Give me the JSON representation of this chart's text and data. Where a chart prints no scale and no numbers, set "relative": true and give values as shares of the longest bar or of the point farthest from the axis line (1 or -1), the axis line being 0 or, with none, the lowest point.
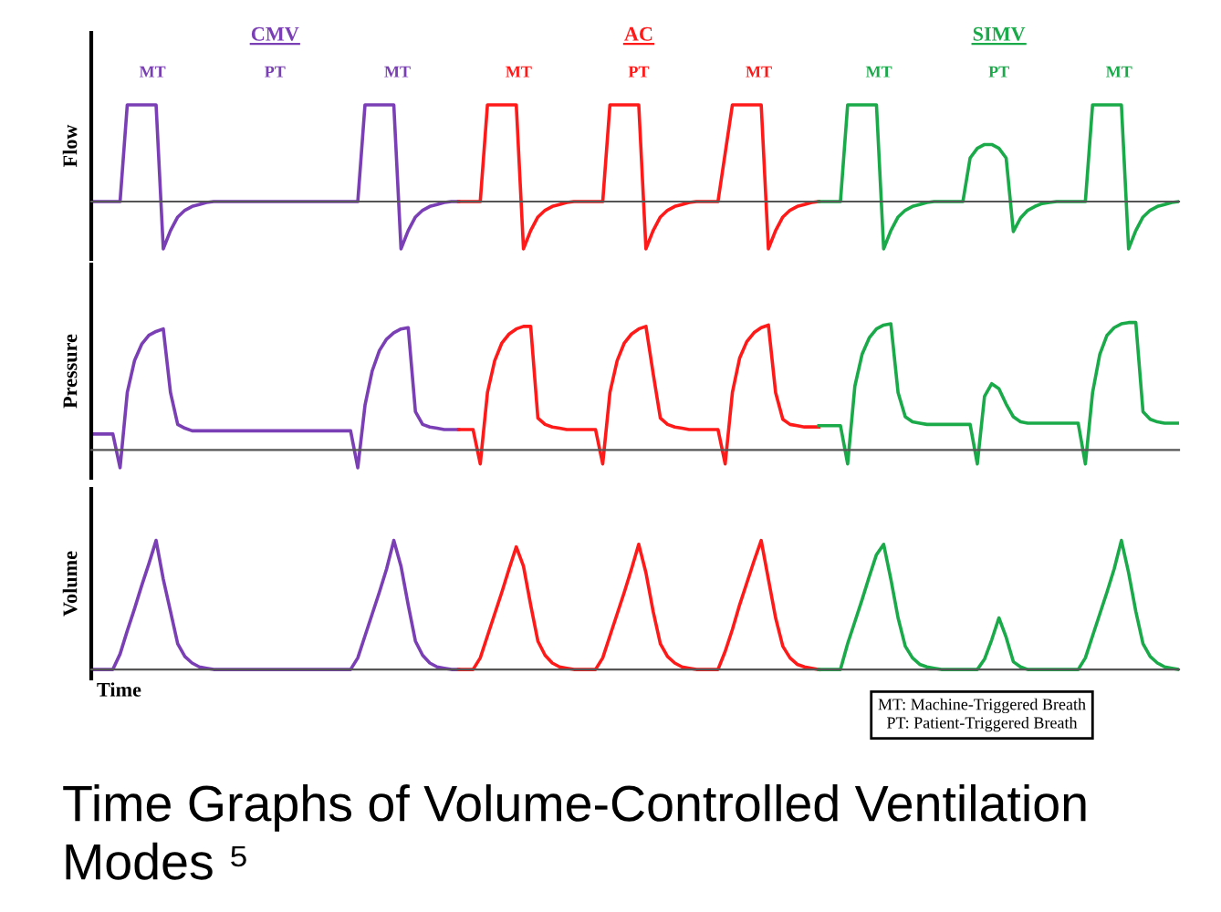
{
  "chart_data": [
    {
      "type": "line",
      "title": "Time Graphs of Volume-Controlled Ventilation Modes ⁵",
      "ylabel": "Flow",
      "relative": true,
      "tick_labels": false,
      "annotations": [
        "CMV",
        "AC",
        "SIMV",
        "MT",
        "PT",
        "MT",
        "MT",
        "PT",
        "MT",
        "MT",
        "PT",
        "MT"
      ],
      "categories": [
        null,
        null,
        null,
        null,
        null,
        null,
        null,
        null,
        null,
        null,
        null,
        null,
        null,
        null,
        null,
        null,
        null,
        null,
        null,
        null,
        null,
        null,
        null,
        null,
        null,
        null,
        null,
        null,
        null,
        null,
        null,
        null,
        null,
        null,
        null,
        null,
        null,
        null,
        null,
        null,
        null,
        null,
        null,
        null,
        null,
        null,
        null,
        null,
        null,
        null,
        null,
        null,
        null,
        null,
        null,
        null,
        null,
        null,
        null,
        null,
        null,
        null,
        null,
        null,
        null,
        null,
        null,
        null,
        null,
        null,
        null,
        null,
        null,
        null,
        null,
        null,
        null,
        null,
        null,
        null,
        null,
        null,
        null,
        null,
        null,
        null,
        null,
        null,
        null,
        null,
        null,
        null,
        null,
        null,
        null,
        null,
        null,
        null,
        null,
        null,
        null,
        null,
        null,
        null,
        null,
        null,
        null,
        null,
        null,
        null,
        null,
        null,
        null,
        null,
        null,
        null,
        null,
        null,
        null,
        null,
        null,
        null,
        null,
        null,
        null,
        null,
        null,
        null,
        null,
        null,
        null,
        null,
        null,
        null,
        null,
        null,
        null,
        null,
        null,
        null,
        null,
        null,
        null,
        null,
        null,
        null,
        null,
        null,
        null,
        null,
        null,
        null
      ],
      "series": [
        {
          "color": "#7b3fb5",
          "values": [
            0,
            0,
            0,
            0,
            0,
            1,
            1,
            1,
            1,
            1,
            -0.49,
            -0.3,
            -0.16,
            -0.09,
            -0.05,
            -0.03,
            -0.01,
            0,
            0,
            0,
            0,
            0,
            0,
            0,
            0,
            0,
            0,
            0,
            0,
            0,
            0,
            0,
            0,
            0,
            0,
            0,
            0,
            0,
            1,
            1,
            1,
            1,
            1,
            -0.49,
            -0.3,
            -0.16,
            -0.09,
            -0.05,
            -0.03,
            -0.01,
            0,
            0,
            null,
            null,
            null,
            null,
            null,
            null,
            null,
            null,
            null,
            null,
            null,
            null,
            null,
            null,
            null,
            null,
            null,
            null,
            null,
            null,
            null,
            null,
            null,
            null,
            null,
            null,
            null,
            null,
            null,
            null,
            null,
            null,
            null,
            null,
            null,
            null,
            null,
            null,
            null,
            null,
            null,
            null,
            null,
            null,
            null,
            null,
            null,
            null,
            null,
            null,
            null,
            null,
            null,
            null,
            null,
            null,
            null,
            null,
            null,
            null,
            null,
            null,
            null,
            null,
            null,
            null,
            null,
            null,
            null,
            null,
            null,
            null,
            null,
            null,
            null,
            null,
            null,
            null,
            null,
            null,
            null,
            null,
            null,
            null,
            null,
            null,
            null,
            null,
            null,
            null,
            null,
            null,
            null,
            null,
            null,
            null,
            null,
            null,
            null,
            null
          ]
        },
        {
          "color": "#ff1a1a",
          "values": [
            null,
            null,
            null,
            null,
            null,
            null,
            null,
            null,
            null,
            null,
            null,
            null,
            null,
            null,
            null,
            null,
            null,
            null,
            null,
            null,
            null,
            null,
            null,
            null,
            null,
            null,
            null,
            null,
            null,
            null,
            null,
            null,
            null,
            null,
            null,
            null,
            null,
            null,
            null,
            null,
            null,
            null,
            null,
            null,
            null,
            null,
            null,
            null,
            null,
            null,
            null,
            0,
            0,
            0,
            0,
            1,
            1,
            1,
            1,
            1,
            -0.49,
            -0.3,
            -0.16,
            -0.09,
            -0.05,
            -0.03,
            -0.01,
            0,
            0,
            0,
            0,
            0,
            1,
            1,
            1,
            1,
            1,
            -0.49,
            -0.3,
            -0.16,
            -0.09,
            -0.05,
            -0.03,
            -0.01,
            0,
            0,
            0,
            0,
            0.5,
            1,
            1,
            1,
            1,
            1,
            -0.49,
            -0.3,
            -0.16,
            -0.09,
            -0.05,
            -0.03,
            -0.01,
            0,
            null,
            null,
            null,
            null,
            null,
            null,
            null,
            null,
            null,
            null,
            null,
            null,
            null,
            null,
            null,
            null,
            null,
            null,
            null,
            null,
            null,
            null,
            null,
            null,
            null,
            null,
            null,
            null,
            null,
            null,
            null,
            null,
            null,
            null,
            null,
            null,
            null,
            null,
            null,
            null,
            null,
            null,
            null,
            null,
            null,
            null,
            null,
            null,
            null,
            null
          ]
        },
        {
          "color": "#1aaa4a",
          "values": [
            null,
            null,
            null,
            null,
            null,
            null,
            null,
            null,
            null,
            null,
            null,
            null,
            null,
            null,
            null,
            null,
            null,
            null,
            null,
            null,
            null,
            null,
            null,
            null,
            null,
            null,
            null,
            null,
            null,
            null,
            null,
            null,
            null,
            null,
            null,
            null,
            null,
            null,
            null,
            null,
            null,
            null,
            null,
            null,
            null,
            null,
            null,
            null,
            null,
            null,
            null,
            null,
            null,
            null,
            null,
            null,
            null,
            null,
            null,
            null,
            null,
            null,
            null,
            null,
            null,
            null,
            null,
            null,
            null,
            null,
            null,
            null,
            null,
            null,
            null,
            null,
            null,
            null,
            null,
            null,
            null,
            null,
            null,
            null,
            null,
            null,
            null,
            null,
            null,
            null,
            null,
            null,
            null,
            null,
            null,
            null,
            null,
            null,
            null,
            null,
            null,
            0,
            0,
            0,
            0,
            1,
            1,
            1,
            1,
            1,
            -0.49,
            -0.3,
            -0.16,
            -0.09,
            -0.05,
            -0.03,
            -0.01,
            0,
            0,
            0,
            0,
            0,
            0.45,
            0.55,
            0.59,
            0.59,
            0.55,
            0.45,
            -0.31,
            -0.17,
            -0.09,
            -0.05,
            -0.02,
            -0.01,
            0,
            0,
            0,
            0,
            0,
            1,
            1,
            1,
            1,
            1,
            -0.49,
            -0.3,
            -0.16,
            -0.09,
            -0.05,
            -0.03,
            -0.01,
            0
          ]
        }
      ]
    },
    {
      "type": "line",
      "ylabel": "Pressure",
      "relative": true,
      "tick_labels": false,
      "categories": [
        null,
        null,
        null,
        null,
        null,
        null,
        null,
        null,
        null,
        null,
        null,
        null,
        null,
        null,
        null,
        null,
        null,
        null,
        null,
        null,
        null,
        null,
        null,
        null,
        null,
        null,
        null,
        null,
        null,
        null,
        null,
        null,
        null,
        null,
        null,
        null,
        null,
        null,
        null,
        null,
        null,
        null,
        null,
        null,
        null,
        null,
        null,
        null,
        null,
        null,
        null,
        null,
        null,
        null,
        null,
        null,
        null,
        null,
        null,
        null,
        null,
        null,
        null,
        null,
        null,
        null,
        null,
        null,
        null,
        null,
        null,
        null,
        null,
        null,
        null,
        null,
        null,
        null,
        null,
        null,
        null,
        null,
        null,
        null,
        null,
        null,
        null,
        null,
        null,
        null,
        null,
        null,
        null,
        null,
        null,
        null,
        null,
        null,
        null,
        null,
        null,
        null,
        null,
        null,
        null,
        null,
        null,
        null,
        null,
        null,
        null,
        null,
        null,
        null,
        null,
        null,
        null,
        null,
        null,
        null,
        null,
        null,
        null,
        null,
        null,
        null,
        null,
        null,
        null,
        null,
        null,
        null,
        null,
        null,
        null,
        null,
        null,
        null,
        null,
        null,
        null,
        null,
        null,
        null,
        null,
        null,
        null,
        null,
        null,
        null,
        null,
        null
      ],
      "series": [
        {
          "color": "#7b3fb5",
          "values": [
            0.125,
            0.125,
            0.125,
            0.125,
            -0.14,
            0.45,
            0.7,
            0.83,
            0.9,
            0.93,
            0.95,
            0.45,
            0.2,
            0.17,
            0.15,
            0.15,
            0.15,
            0.15,
            0.15,
            0.15,
            0.15,
            0.15,
            0.15,
            0.15,
            0.15,
            0.15,
            0.15,
            0.15,
            0.15,
            0.15,
            0.15,
            0.15,
            0.15,
            0.15,
            0.15,
            0.15,
            0.15,
            -0.14,
            0.35,
            0.62,
            0.78,
            0.87,
            0.92,
            0.95,
            0.96,
            0.3,
            0.2,
            0.18,
            0.17,
            0.16,
            0.16,
            0.16,
            null,
            null,
            null,
            null,
            null,
            null,
            null,
            null,
            null,
            null,
            null,
            null,
            null,
            null,
            null,
            null,
            null,
            null,
            null,
            null,
            null,
            null,
            null,
            null,
            null,
            null,
            null,
            null,
            null,
            null,
            null,
            null,
            null,
            null,
            null,
            null,
            null,
            null,
            null,
            null,
            null,
            null,
            null,
            null,
            null,
            null,
            null,
            null,
            null,
            null,
            null,
            null,
            null,
            null,
            null,
            null,
            null,
            null,
            null,
            null,
            null,
            null,
            null,
            null,
            null,
            null,
            null,
            null,
            null,
            null,
            null,
            null,
            null,
            null,
            null,
            null,
            null,
            null,
            null,
            null,
            null,
            null,
            null,
            null,
            null,
            null,
            null,
            null,
            null,
            null,
            null,
            null,
            null,
            null,
            null,
            null,
            null,
            null,
            null,
            null
          ]
        },
        {
          "color": "#ff1a1a",
          "values": [
            null,
            null,
            null,
            null,
            null,
            null,
            null,
            null,
            null,
            null,
            null,
            null,
            null,
            null,
            null,
            null,
            null,
            null,
            null,
            null,
            null,
            null,
            null,
            null,
            null,
            null,
            null,
            null,
            null,
            null,
            null,
            null,
            null,
            null,
            null,
            null,
            null,
            null,
            null,
            null,
            null,
            null,
            null,
            null,
            null,
            null,
            null,
            null,
            null,
            null,
            null,
            0.16,
            0.16,
            0.16,
            -0.11,
            0.45,
            0.7,
            0.84,
            0.91,
            0.95,
            0.97,
            0.97,
            0.25,
            0.2,
            0.18,
            0.17,
            0.16,
            0.16,
            0.16,
            0.16,
            0.16,
            -0.11,
            0.45,
            0.7,
            0.84,
            0.91,
            0.95,
            0.97,
            0.6,
            0.25,
            0.2,
            0.18,
            0.17,
            0.16,
            0.16,
            0.16,
            0.16,
            0.16,
            -0.11,
            0.45,
            0.72,
            0.85,
            0.92,
            0.96,
            0.98,
            0.45,
            0.24,
            0.2,
            0.19,
            0.18,
            0.18,
            0.18,
            null,
            null,
            null,
            null,
            null,
            null,
            null,
            null,
            null,
            null,
            null,
            null,
            null,
            null,
            null,
            null,
            null,
            null,
            null,
            null,
            null,
            null,
            null,
            null,
            null,
            null,
            null,
            null,
            null,
            null,
            null,
            null,
            null,
            null,
            null,
            null,
            null,
            null,
            null,
            null,
            null,
            null,
            null,
            null,
            null,
            null,
            null,
            null,
            null,
            null
          ]
        },
        {
          "color": "#1aaa4a",
          "values": [
            null,
            null,
            null,
            null,
            null,
            null,
            null,
            null,
            null,
            null,
            null,
            null,
            null,
            null,
            null,
            null,
            null,
            null,
            null,
            null,
            null,
            null,
            null,
            null,
            null,
            null,
            null,
            null,
            null,
            null,
            null,
            null,
            null,
            null,
            null,
            null,
            null,
            null,
            null,
            null,
            null,
            null,
            null,
            null,
            null,
            null,
            null,
            null,
            null,
            null,
            null,
            null,
            null,
            null,
            null,
            null,
            null,
            null,
            null,
            null,
            null,
            null,
            null,
            null,
            null,
            null,
            null,
            null,
            null,
            null,
            null,
            null,
            null,
            null,
            null,
            null,
            null,
            null,
            null,
            null,
            null,
            null,
            null,
            null,
            null,
            null,
            null,
            null,
            null,
            null,
            null,
            null,
            null,
            null,
            null,
            null,
            null,
            null,
            null,
            null,
            null,
            0.19,
            0.19,
            0.19,
            0.19,
            -0.11,
            0.5,
            0.75,
            0.88,
            0.95,
            0.98,
            0.99,
            0.45,
            0.26,
            0.22,
            0.21,
            0.2,
            0.2,
            0.2,
            0.2,
            0.2,
            0.2,
            0.2,
            -0.11,
            0.42,
            0.52,
            0.48,
            0.36,
            0.26,
            0.22,
            0.21,
            0.21,
            0.21,
            0.21,
            0.21,
            0.21,
            0.21,
            0.21,
            -0.11,
            0.45,
            0.75,
            0.9,
            0.96,
            0.99,
            1.0,
            1.0,
            0.3,
            0.24,
            0.22,
            0.21,
            0.21,
            0.21
          ]
        }
      ]
    },
    {
      "type": "line",
      "ylabel": "Volume",
      "xlabel": "Time",
      "relative": true,
      "tick_labels": false,
      "annotations": [
        "MT: Machine-Triggered Breath",
        "PT: Patient-Triggered Breath"
      ],
      "categories": [
        null,
        null,
        null,
        null,
        null,
        null,
        null,
        null,
        null,
        null,
        null,
        null,
        null,
        null,
        null,
        null,
        null,
        null,
        null,
        null,
        null,
        null,
        null,
        null,
        null,
        null,
        null,
        null,
        null,
        null,
        null,
        null,
        null,
        null,
        null,
        null,
        null,
        null,
        null,
        null,
        null,
        null,
        null,
        null,
        null,
        null,
        null,
        null,
        null,
        null,
        null,
        null,
        null,
        null,
        null,
        null,
        null,
        null,
        null,
        null,
        null,
        null,
        null,
        null,
        null,
        null,
        null,
        null,
        null,
        null,
        null,
        null,
        null,
        null,
        null,
        null,
        null,
        null,
        null,
        null,
        null,
        null,
        null,
        null,
        null,
        null,
        null,
        null,
        null,
        null,
        null,
        null,
        null,
        null,
        null,
        null,
        null,
        null,
        null,
        null,
        null,
        null,
        null,
        null,
        null,
        null,
        null,
        null,
        null,
        null,
        null,
        null,
        null,
        null,
        null,
        null,
        null,
        null,
        null,
        null,
        null,
        null,
        null,
        null,
        null,
        null,
        null,
        null,
        null,
        null,
        null,
        null,
        null,
        null,
        null,
        null,
        null,
        null,
        null,
        null,
        null,
        null,
        null,
        null,
        null,
        null,
        null,
        null,
        null,
        null,
        null,
        null
      ],
      "series": [
        {
          "color": "#7b3fb5",
          "values": [
            0,
            0,
            0,
            0,
            0.12,
            0.3,
            0.47,
            0.65,
            0.82,
            1,
            0.7,
            0.45,
            0.2,
            0.1,
            0.05,
            0.02,
            0.01,
            0,
            0,
            0,
            0,
            0,
            0,
            0,
            0,
            0,
            0,
            0,
            0,
            0,
            0,
            0,
            0,
            0,
            0,
            0,
            0,
            0.09,
            0.26,
            0.43,
            0.6,
            0.78,
            1,
            0.8,
            0.5,
            0.22,
            0.11,
            0.05,
            0.02,
            0.01,
            0,
            0,
            null,
            null,
            null,
            null,
            null,
            null,
            null,
            null,
            null,
            null,
            null,
            null,
            null,
            null,
            null,
            null,
            null,
            null,
            null,
            null,
            null,
            null,
            null,
            null,
            null,
            null,
            null,
            null,
            null,
            null,
            null,
            null,
            null,
            null,
            null,
            null,
            null,
            null,
            null,
            null,
            null,
            null,
            null,
            null,
            null,
            null,
            null,
            null,
            null,
            null,
            null,
            null,
            null,
            null,
            null,
            null,
            null,
            null,
            null,
            null,
            null,
            null,
            null,
            null,
            null,
            null,
            null,
            null,
            null,
            null,
            null,
            null,
            null,
            null,
            null,
            null,
            null,
            null,
            null,
            null,
            null,
            null,
            null,
            null,
            null,
            null,
            null,
            null,
            null,
            null,
            null,
            null,
            null,
            null,
            null,
            null,
            null,
            null,
            null,
            null
          ]
        },
        {
          "color": "#ff1a1a",
          "values": [
            null,
            null,
            null,
            null,
            null,
            null,
            null,
            null,
            null,
            null,
            null,
            null,
            null,
            null,
            null,
            null,
            null,
            null,
            null,
            null,
            null,
            null,
            null,
            null,
            null,
            null,
            null,
            null,
            null,
            null,
            null,
            null,
            null,
            null,
            null,
            null,
            null,
            null,
            null,
            null,
            null,
            null,
            null,
            null,
            null,
            null,
            null,
            null,
            null,
            null,
            null,
            0,
            0,
            0,
            0.09,
            0.26,
            0.43,
            0.6,
            0.78,
            0.95,
            0.8,
            0.5,
            0.22,
            0.11,
            0.05,
            0.02,
            0.01,
            0,
            0,
            0,
            0,
            0.09,
            0.26,
            0.43,
            0.6,
            0.78,
            0.97,
            0.75,
            0.45,
            0.2,
            0.1,
            0.05,
            0.02,
            0.01,
            0,
            0,
            0,
            0,
            0.14,
            0.31,
            0.5,
            0.67,
            0.84,
            1,
            0.7,
            0.4,
            0.18,
            0.09,
            0.04,
            0.02,
            0.01,
            0,
            null,
            null,
            null,
            null,
            null,
            null,
            null,
            null,
            null,
            null,
            null,
            null,
            null,
            null,
            null,
            null,
            null,
            null,
            null,
            null,
            null,
            null,
            null,
            null,
            null,
            null,
            null,
            null,
            null,
            null,
            null,
            null,
            null,
            null,
            null,
            null,
            null,
            null,
            null,
            null,
            null,
            null,
            null,
            null,
            null,
            null,
            null,
            null,
            null,
            null
          ]
        },
        {
          "color": "#1aaa4a",
          "values": [
            null,
            null,
            null,
            null,
            null,
            null,
            null,
            null,
            null,
            null,
            null,
            null,
            null,
            null,
            null,
            null,
            null,
            null,
            null,
            null,
            null,
            null,
            null,
            null,
            null,
            null,
            null,
            null,
            null,
            null,
            null,
            null,
            null,
            null,
            null,
            null,
            null,
            null,
            null,
            null,
            null,
            null,
            null,
            null,
            null,
            null,
            null,
            null,
            null,
            null,
            null,
            null,
            null,
            null,
            null,
            null,
            null,
            null,
            null,
            null,
            null,
            null,
            null,
            null,
            null,
            null,
            null,
            null,
            null,
            null,
            null,
            null,
            null,
            null,
            null,
            null,
            null,
            null,
            null,
            null,
            null,
            null,
            null,
            null,
            null,
            null,
            null,
            null,
            null,
            null,
            null,
            null,
            null,
            null,
            null,
            null,
            null,
            null,
            null,
            null,
            null,
            0,
            0,
            0,
            0,
            0.2,
            0.37,
            0.54,
            0.72,
            0.89,
            0.97,
            0.7,
            0.4,
            0.18,
            0.09,
            0.04,
            0.02,
            0.01,
            0,
            0,
            0,
            0,
            0,
            0,
            0.08,
            0.23,
            0.4,
            0.25,
            0.06,
            0.02,
            0,
            0,
            0,
            0,
            0,
            0,
            0,
            0,
            0.09,
            0.26,
            0.43,
            0.6,
            0.78,
            1.0,
            0.75,
            0.45,
            0.2,
            0.1,
            0.05,
            0.02,
            0.01,
            0
          ]
        }
      ]
    }
  ]
}
